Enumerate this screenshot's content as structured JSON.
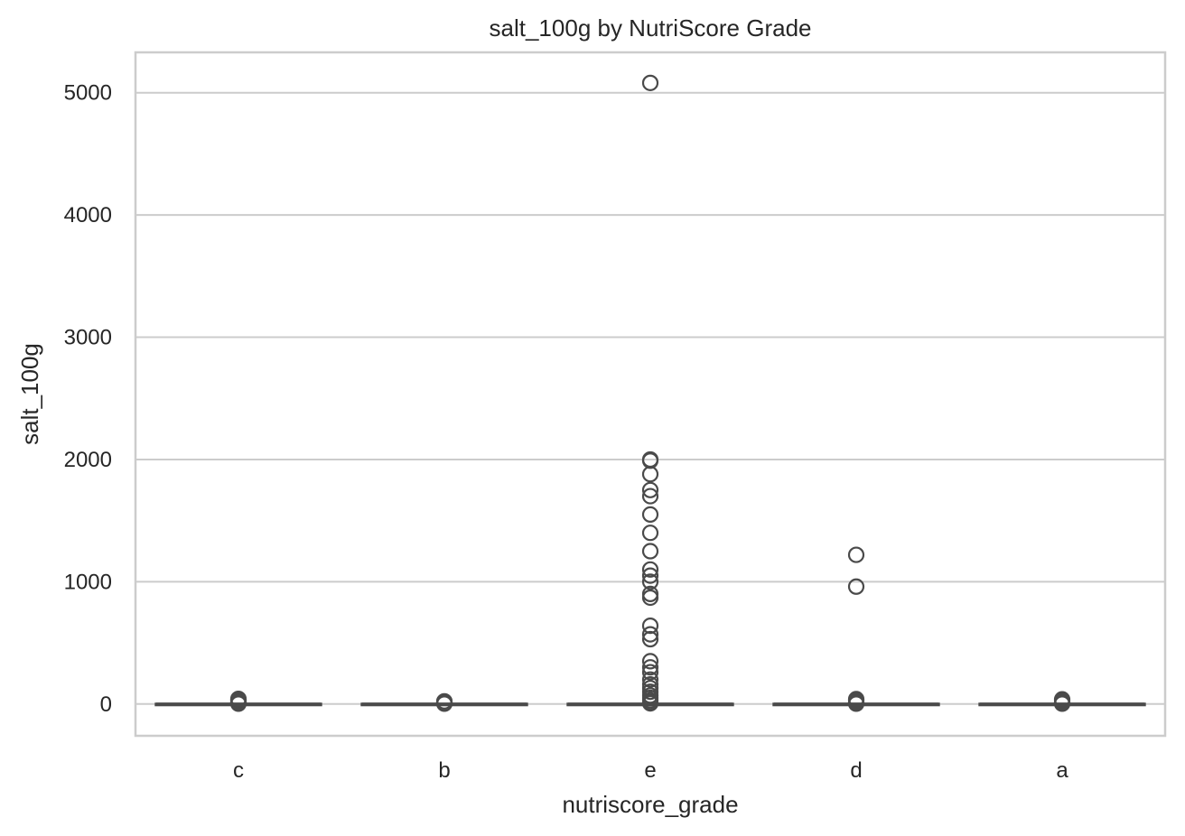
{
  "chart_data": {
    "type": "box",
    "title": "salt_100g by NutriScore Grade",
    "xlabel": "nutriscore_grade",
    "ylabel": "salt_100g",
    "ylim": [
      -260,
      5330
    ],
    "yticks": [
      0,
      1000,
      2000,
      3000,
      4000,
      5000
    ],
    "grid": true,
    "categories": [
      "c",
      "b",
      "e",
      "d",
      "a"
    ],
    "boxes": [
      {
        "category": "c",
        "median": 0,
        "q1": 0,
        "q3": 0,
        "whisker_low": 0,
        "whisker_high": 0,
        "outliers": [
          3,
          8,
          12,
          18,
          25,
          30,
          36,
          42
        ]
      },
      {
        "category": "b",
        "median": 0,
        "q1": 0,
        "q3": 0,
        "whisker_low": 0,
        "whisker_high": 0,
        "outliers": [
          3,
          7,
          12,
          18,
          22
        ]
      },
      {
        "category": "e",
        "median": 0,
        "q1": 0,
        "q3": 0,
        "whisker_low": 0,
        "whisker_high": 0,
        "outliers": [
          5,
          15,
          30,
          50,
          70,
          100,
          130,
          160,
          200,
          260,
          300,
          350,
          530,
          570,
          640,
          870,
          900,
          1000,
          1050,
          1100,
          1250,
          1400,
          1550,
          1700,
          1750,
          1880,
          1990,
          2000,
          5080
        ]
      },
      {
        "category": "d",
        "median": 0,
        "q1": 0,
        "q3": 0,
        "whisker_low": 0,
        "whisker_high": 0,
        "outliers": [
          3,
          10,
          20,
          30,
          40,
          960,
          1220
        ]
      },
      {
        "category": "a",
        "median": 0,
        "q1": 0,
        "q3": 0,
        "whisker_low": 0,
        "whisker_high": 0,
        "outliers": [
          3,
          8,
          15,
          25,
          38
        ]
      }
    ],
    "colors": {
      "box": "#4a4a4a",
      "grid": "#cccccc",
      "text": "#262626"
    }
  }
}
